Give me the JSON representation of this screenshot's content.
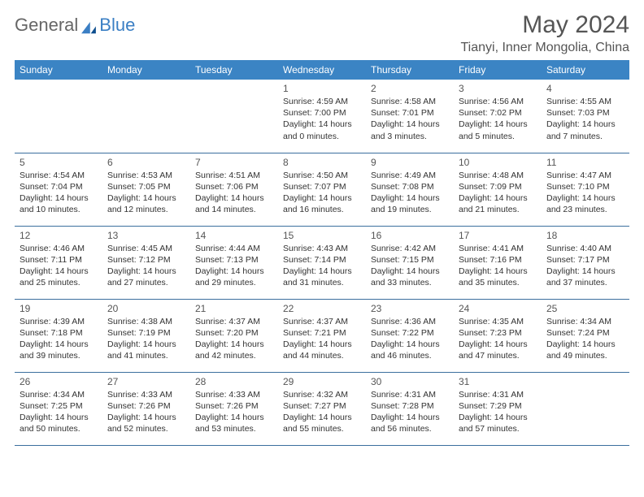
{
  "brand": {
    "text1": "General",
    "text2": "Blue"
  },
  "title": "May 2024",
  "location": "Tianyi, Inner Mongolia, China",
  "header_bg": "#3b84c4",
  "header_fg": "#ffffff",
  "border_color": "#3b6f9e",
  "day_headers": [
    "Sunday",
    "Monday",
    "Tuesday",
    "Wednesday",
    "Thursday",
    "Friday",
    "Saturday"
  ],
  "weeks": [
    [
      null,
      null,
      null,
      {
        "n": "1",
        "sr": "4:59 AM",
        "ss": "7:00 PM",
        "dl": "14 hours and 0 minutes."
      },
      {
        "n": "2",
        "sr": "4:58 AM",
        "ss": "7:01 PM",
        "dl": "14 hours and 3 minutes."
      },
      {
        "n": "3",
        "sr": "4:56 AM",
        "ss": "7:02 PM",
        "dl": "14 hours and 5 minutes."
      },
      {
        "n": "4",
        "sr": "4:55 AM",
        "ss": "7:03 PM",
        "dl": "14 hours and 7 minutes."
      }
    ],
    [
      {
        "n": "5",
        "sr": "4:54 AM",
        "ss": "7:04 PM",
        "dl": "14 hours and 10 minutes."
      },
      {
        "n": "6",
        "sr": "4:53 AM",
        "ss": "7:05 PM",
        "dl": "14 hours and 12 minutes."
      },
      {
        "n": "7",
        "sr": "4:51 AM",
        "ss": "7:06 PM",
        "dl": "14 hours and 14 minutes."
      },
      {
        "n": "8",
        "sr": "4:50 AM",
        "ss": "7:07 PM",
        "dl": "14 hours and 16 minutes."
      },
      {
        "n": "9",
        "sr": "4:49 AM",
        "ss": "7:08 PM",
        "dl": "14 hours and 19 minutes."
      },
      {
        "n": "10",
        "sr": "4:48 AM",
        "ss": "7:09 PM",
        "dl": "14 hours and 21 minutes."
      },
      {
        "n": "11",
        "sr": "4:47 AM",
        "ss": "7:10 PM",
        "dl": "14 hours and 23 minutes."
      }
    ],
    [
      {
        "n": "12",
        "sr": "4:46 AM",
        "ss": "7:11 PM",
        "dl": "14 hours and 25 minutes."
      },
      {
        "n": "13",
        "sr": "4:45 AM",
        "ss": "7:12 PM",
        "dl": "14 hours and 27 minutes."
      },
      {
        "n": "14",
        "sr": "4:44 AM",
        "ss": "7:13 PM",
        "dl": "14 hours and 29 minutes."
      },
      {
        "n": "15",
        "sr": "4:43 AM",
        "ss": "7:14 PM",
        "dl": "14 hours and 31 minutes."
      },
      {
        "n": "16",
        "sr": "4:42 AM",
        "ss": "7:15 PM",
        "dl": "14 hours and 33 minutes."
      },
      {
        "n": "17",
        "sr": "4:41 AM",
        "ss": "7:16 PM",
        "dl": "14 hours and 35 minutes."
      },
      {
        "n": "18",
        "sr": "4:40 AM",
        "ss": "7:17 PM",
        "dl": "14 hours and 37 minutes."
      }
    ],
    [
      {
        "n": "19",
        "sr": "4:39 AM",
        "ss": "7:18 PM",
        "dl": "14 hours and 39 minutes."
      },
      {
        "n": "20",
        "sr": "4:38 AM",
        "ss": "7:19 PM",
        "dl": "14 hours and 41 minutes."
      },
      {
        "n": "21",
        "sr": "4:37 AM",
        "ss": "7:20 PM",
        "dl": "14 hours and 42 minutes."
      },
      {
        "n": "22",
        "sr": "4:37 AM",
        "ss": "7:21 PM",
        "dl": "14 hours and 44 minutes."
      },
      {
        "n": "23",
        "sr": "4:36 AM",
        "ss": "7:22 PM",
        "dl": "14 hours and 46 minutes."
      },
      {
        "n": "24",
        "sr": "4:35 AM",
        "ss": "7:23 PM",
        "dl": "14 hours and 47 minutes."
      },
      {
        "n": "25",
        "sr": "4:34 AM",
        "ss": "7:24 PM",
        "dl": "14 hours and 49 minutes."
      }
    ],
    [
      {
        "n": "26",
        "sr": "4:34 AM",
        "ss": "7:25 PM",
        "dl": "14 hours and 50 minutes."
      },
      {
        "n": "27",
        "sr": "4:33 AM",
        "ss": "7:26 PM",
        "dl": "14 hours and 52 minutes."
      },
      {
        "n": "28",
        "sr": "4:33 AM",
        "ss": "7:26 PM",
        "dl": "14 hours and 53 minutes."
      },
      {
        "n": "29",
        "sr": "4:32 AM",
        "ss": "7:27 PM",
        "dl": "14 hours and 55 minutes."
      },
      {
        "n": "30",
        "sr": "4:31 AM",
        "ss": "7:28 PM",
        "dl": "14 hours and 56 minutes."
      },
      {
        "n": "31",
        "sr": "4:31 AM",
        "ss": "7:29 PM",
        "dl": "14 hours and 57 minutes."
      },
      null
    ]
  ],
  "labels": {
    "sunrise": "Sunrise: ",
    "sunset": "Sunset: ",
    "daylight": "Daylight: "
  }
}
